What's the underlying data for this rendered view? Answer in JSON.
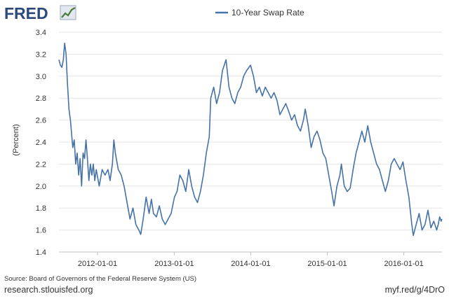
{
  "logo": {
    "text": "FRED"
  },
  "footer": {
    "source": "Source: Board of Governors of the Federal Reserve System (US)",
    "site": "research.stlouisfed.org",
    "short_link": "myf.red/g/4DrO"
  },
  "colors": {
    "series": "#4572a7",
    "grid": "#e6e6e6",
    "logo": "#2b4a7c",
    "text": "#333333"
  },
  "chart_data": {
    "type": "line",
    "title": "",
    "xlabel": "",
    "ylabel": "(Percent)",
    "ylim": [
      1.4,
      3.4
    ],
    "yticks": [
      1.4,
      1.6,
      1.8,
      2.0,
      2.2,
      2.4,
      2.6,
      2.8,
      3.0,
      3.2,
      3.4
    ],
    "ytick_labels": [
      "1.4",
      "1.6",
      "1.8",
      "2.0",
      "2.2",
      "2.4",
      "2.6",
      "2.8",
      "3.0",
      "3.2",
      "3.4"
    ],
    "xlim": [
      "2011-07-01",
      "2016-07-01"
    ],
    "xticks": [
      "2012-01-01",
      "2013-01-01",
      "2014-01-01",
      "2015-01-01",
      "2016-01-01"
    ],
    "grid": true,
    "legend_position": "top-center",
    "series": [
      {
        "name": "10-Year Swap Rate",
        "points": [
          [
            "2011-07-01",
            3.15
          ],
          [
            "2011-07-08",
            3.1
          ],
          [
            "2011-07-15",
            3.08
          ],
          [
            "2011-07-22",
            3.15
          ],
          [
            "2011-07-28",
            3.3
          ],
          [
            "2011-08-04",
            3.2
          ],
          [
            "2011-08-10",
            2.95
          ],
          [
            "2011-08-18",
            2.7
          ],
          [
            "2011-08-25",
            2.6
          ],
          [
            "2011-09-05",
            2.35
          ],
          [
            "2011-09-12",
            2.42
          ],
          [
            "2011-09-19",
            2.2
          ],
          [
            "2011-09-26",
            2.3
          ],
          [
            "2011-10-03",
            2.1
          ],
          [
            "2011-10-10",
            2.25
          ],
          [
            "2011-10-17",
            2.0
          ],
          [
            "2011-10-24",
            2.3
          ],
          [
            "2011-10-31",
            2.25
          ],
          [
            "2011-11-07",
            2.42
          ],
          [
            "2011-11-14",
            2.25
          ],
          [
            "2011-11-21",
            2.05
          ],
          [
            "2011-11-28",
            2.2
          ],
          [
            "2011-12-05",
            2.1
          ],
          [
            "2011-12-12",
            2.2
          ],
          [
            "2011-12-19",
            2.05
          ],
          [
            "2011-12-26",
            2.15
          ],
          [
            "2012-01-09",
            2.0
          ],
          [
            "2012-01-23",
            2.15
          ],
          [
            "2012-02-06",
            2.1
          ],
          [
            "2012-02-20",
            2.15
          ],
          [
            "2012-03-01",
            2.05
          ],
          [
            "2012-03-12",
            2.2
          ],
          [
            "2012-03-19",
            2.42
          ],
          [
            "2012-03-26",
            2.3
          ],
          [
            "2012-04-09",
            2.15
          ],
          [
            "2012-04-23",
            2.1
          ],
          [
            "2012-05-07",
            2.0
          ],
          [
            "2012-05-21",
            1.85
          ],
          [
            "2012-06-04",
            1.7
          ],
          [
            "2012-06-18",
            1.8
          ],
          [
            "2012-07-02",
            1.65
          ],
          [
            "2012-07-16",
            1.6
          ],
          [
            "2012-07-25",
            1.56
          ],
          [
            "2012-08-06",
            1.7
          ],
          [
            "2012-08-20",
            1.9
          ],
          [
            "2012-09-03",
            1.75
          ],
          [
            "2012-09-14",
            1.88
          ],
          [
            "2012-09-24",
            1.75
          ],
          [
            "2012-10-08",
            1.72
          ],
          [
            "2012-10-22",
            1.82
          ],
          [
            "2012-11-05",
            1.7
          ],
          [
            "2012-11-19",
            1.65
          ],
          [
            "2012-12-03",
            1.7
          ],
          [
            "2012-12-17",
            1.75
          ],
          [
            "2013-01-02",
            1.9
          ],
          [
            "2013-01-14",
            1.95
          ],
          [
            "2013-01-28",
            2.1
          ],
          [
            "2013-02-11",
            2.05
          ],
          [
            "2013-02-25",
            1.95
          ],
          [
            "2013-03-11",
            2.15
          ],
          [
            "2013-03-25",
            2.0
          ],
          [
            "2013-04-08",
            1.9
          ],
          [
            "2013-04-22",
            1.85
          ],
          [
            "2013-05-06",
            1.95
          ],
          [
            "2013-05-20",
            2.1
          ],
          [
            "2013-06-03",
            2.3
          ],
          [
            "2013-06-17",
            2.45
          ],
          [
            "2013-06-24",
            2.8
          ],
          [
            "2013-07-08",
            2.9
          ],
          [
            "2013-07-22",
            2.75
          ],
          [
            "2013-08-05",
            2.85
          ],
          [
            "2013-08-19",
            3.05
          ],
          [
            "2013-09-05",
            3.15
          ],
          [
            "2013-09-19",
            2.9
          ],
          [
            "2013-10-03",
            2.8
          ],
          [
            "2013-10-17",
            2.75
          ],
          [
            "2013-10-31",
            2.85
          ],
          [
            "2013-11-14",
            2.9
          ],
          [
            "2013-11-28",
            3.0
          ],
          [
            "2013-12-12",
            3.05
          ],
          [
            "2013-12-31",
            3.1
          ],
          [
            "2014-01-14",
            3.0
          ],
          [
            "2014-01-28",
            2.85
          ],
          [
            "2014-02-11",
            2.9
          ],
          [
            "2014-02-25",
            2.82
          ],
          [
            "2014-03-11",
            2.9
          ],
          [
            "2014-03-25",
            2.85
          ],
          [
            "2014-04-08",
            2.8
          ],
          [
            "2014-04-22",
            2.85
          ],
          [
            "2014-05-06",
            2.78
          ],
          [
            "2014-05-20",
            2.65
          ],
          [
            "2014-06-03",
            2.7
          ],
          [
            "2014-06-17",
            2.75
          ],
          [
            "2014-07-01",
            2.68
          ],
          [
            "2014-07-15",
            2.6
          ],
          [
            "2014-07-29",
            2.65
          ],
          [
            "2014-08-12",
            2.55
          ],
          [
            "2014-08-26",
            2.5
          ],
          [
            "2014-09-09",
            2.6
          ],
          [
            "2014-09-18",
            2.7
          ],
          [
            "2014-10-02",
            2.55
          ],
          [
            "2014-10-16",
            2.35
          ],
          [
            "2014-10-30",
            2.45
          ],
          [
            "2014-11-13",
            2.5
          ],
          [
            "2014-11-27",
            2.42
          ],
          [
            "2014-12-11",
            2.3
          ],
          [
            "2014-12-25",
            2.25
          ],
          [
            "2015-01-08",
            2.1
          ],
          [
            "2015-01-22",
            1.95
          ],
          [
            "2015-02-02",
            1.82
          ],
          [
            "2015-02-16",
            2.0
          ],
          [
            "2015-03-02",
            2.1
          ],
          [
            "2015-03-09",
            2.2
          ],
          [
            "2015-03-23",
            2.0
          ],
          [
            "2015-04-06",
            1.95
          ],
          [
            "2015-04-20",
            1.98
          ],
          [
            "2015-05-04",
            2.15
          ],
          [
            "2015-05-18",
            2.3
          ],
          [
            "2015-06-01",
            2.4
          ],
          [
            "2015-06-15",
            2.5
          ],
          [
            "2015-06-29",
            2.4
          ],
          [
            "2015-07-13",
            2.55
          ],
          [
            "2015-07-27",
            2.4
          ],
          [
            "2015-08-10",
            2.3
          ],
          [
            "2015-08-24",
            2.2
          ],
          [
            "2015-09-07",
            2.15
          ],
          [
            "2015-09-21",
            2.05
          ],
          [
            "2015-10-05",
            1.95
          ],
          [
            "2015-10-19",
            2.05
          ],
          [
            "2015-11-02",
            2.2
          ],
          [
            "2015-11-16",
            2.25
          ],
          [
            "2015-11-30",
            2.2
          ],
          [
            "2015-12-14",
            2.15
          ],
          [
            "2015-12-28",
            2.22
          ],
          [
            "2016-01-11",
            2.05
          ],
          [
            "2016-01-25",
            1.9
          ],
          [
            "2016-02-08",
            1.65
          ],
          [
            "2016-02-15",
            1.55
          ],
          [
            "2016-02-29",
            1.65
          ],
          [
            "2016-03-14",
            1.75
          ],
          [
            "2016-03-28",
            1.6
          ],
          [
            "2016-04-11",
            1.65
          ],
          [
            "2016-04-25",
            1.78
          ],
          [
            "2016-05-09",
            1.62
          ],
          [
            "2016-05-23",
            1.68
          ],
          [
            "2016-06-06",
            1.6
          ],
          [
            "2016-06-13",
            1.65
          ],
          [
            "2016-06-20",
            1.72
          ],
          [
            "2016-06-27",
            1.68
          ],
          [
            "2016-07-01",
            1.7
          ]
        ]
      }
    ]
  }
}
